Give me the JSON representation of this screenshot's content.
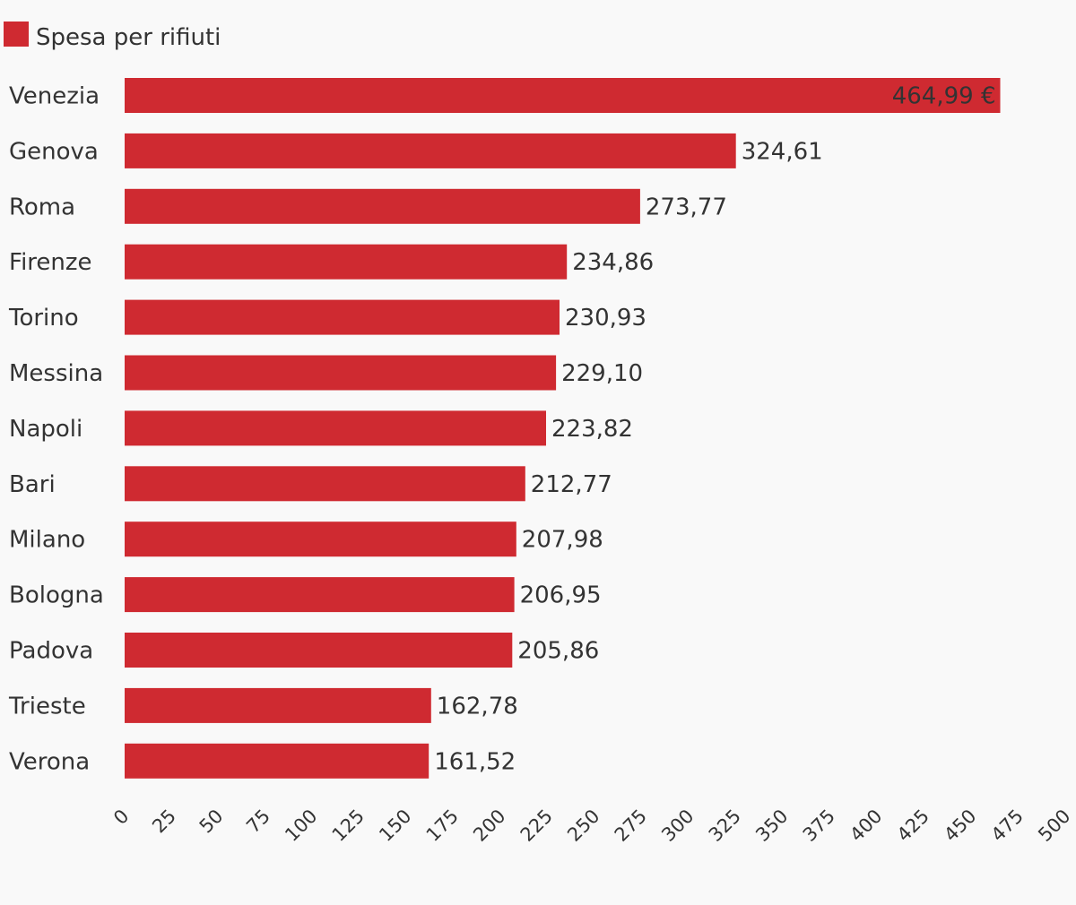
{
  "chart_data": {
    "type": "bar",
    "orientation": "horizontal",
    "categories": [
      "Venezia",
      "Genova",
      "Roma",
      "Firenze",
      "Torino",
      "Messina",
      "Napoli",
      "Bari",
      "Milano",
      "Bologna",
      "Padova",
      "Trieste",
      "Verona"
    ],
    "series": [
      {
        "name": "Spesa per rifiuti",
        "color": "#cf2a31",
        "values": [
          464.99,
          324.61,
          273.77,
          234.86,
          230.93,
          229.1,
          223.82,
          212.77,
          207.98,
          206.95,
          205.86,
          162.78,
          161.52
        ]
      }
    ],
    "value_labels": [
      "464,99 €",
      "324,61",
      "273,77",
      "234,86",
      "230,93",
      "229,10",
      "223,82",
      "212,77",
      "207,98",
      "206,95",
      "205,86",
      "162,78",
      "161,52"
    ],
    "xticks": [
      "0",
      "25",
      "50",
      "75",
      "100",
      "125",
      "150",
      "175",
      "200",
      "225",
      "250",
      "275",
      "300",
      "325",
      "350",
      "375",
      "400",
      "425",
      "450",
      "475",
      "500"
    ],
    "xlim": [
      0,
      500
    ],
    "legend_position": "top-left",
    "grid": false
  }
}
